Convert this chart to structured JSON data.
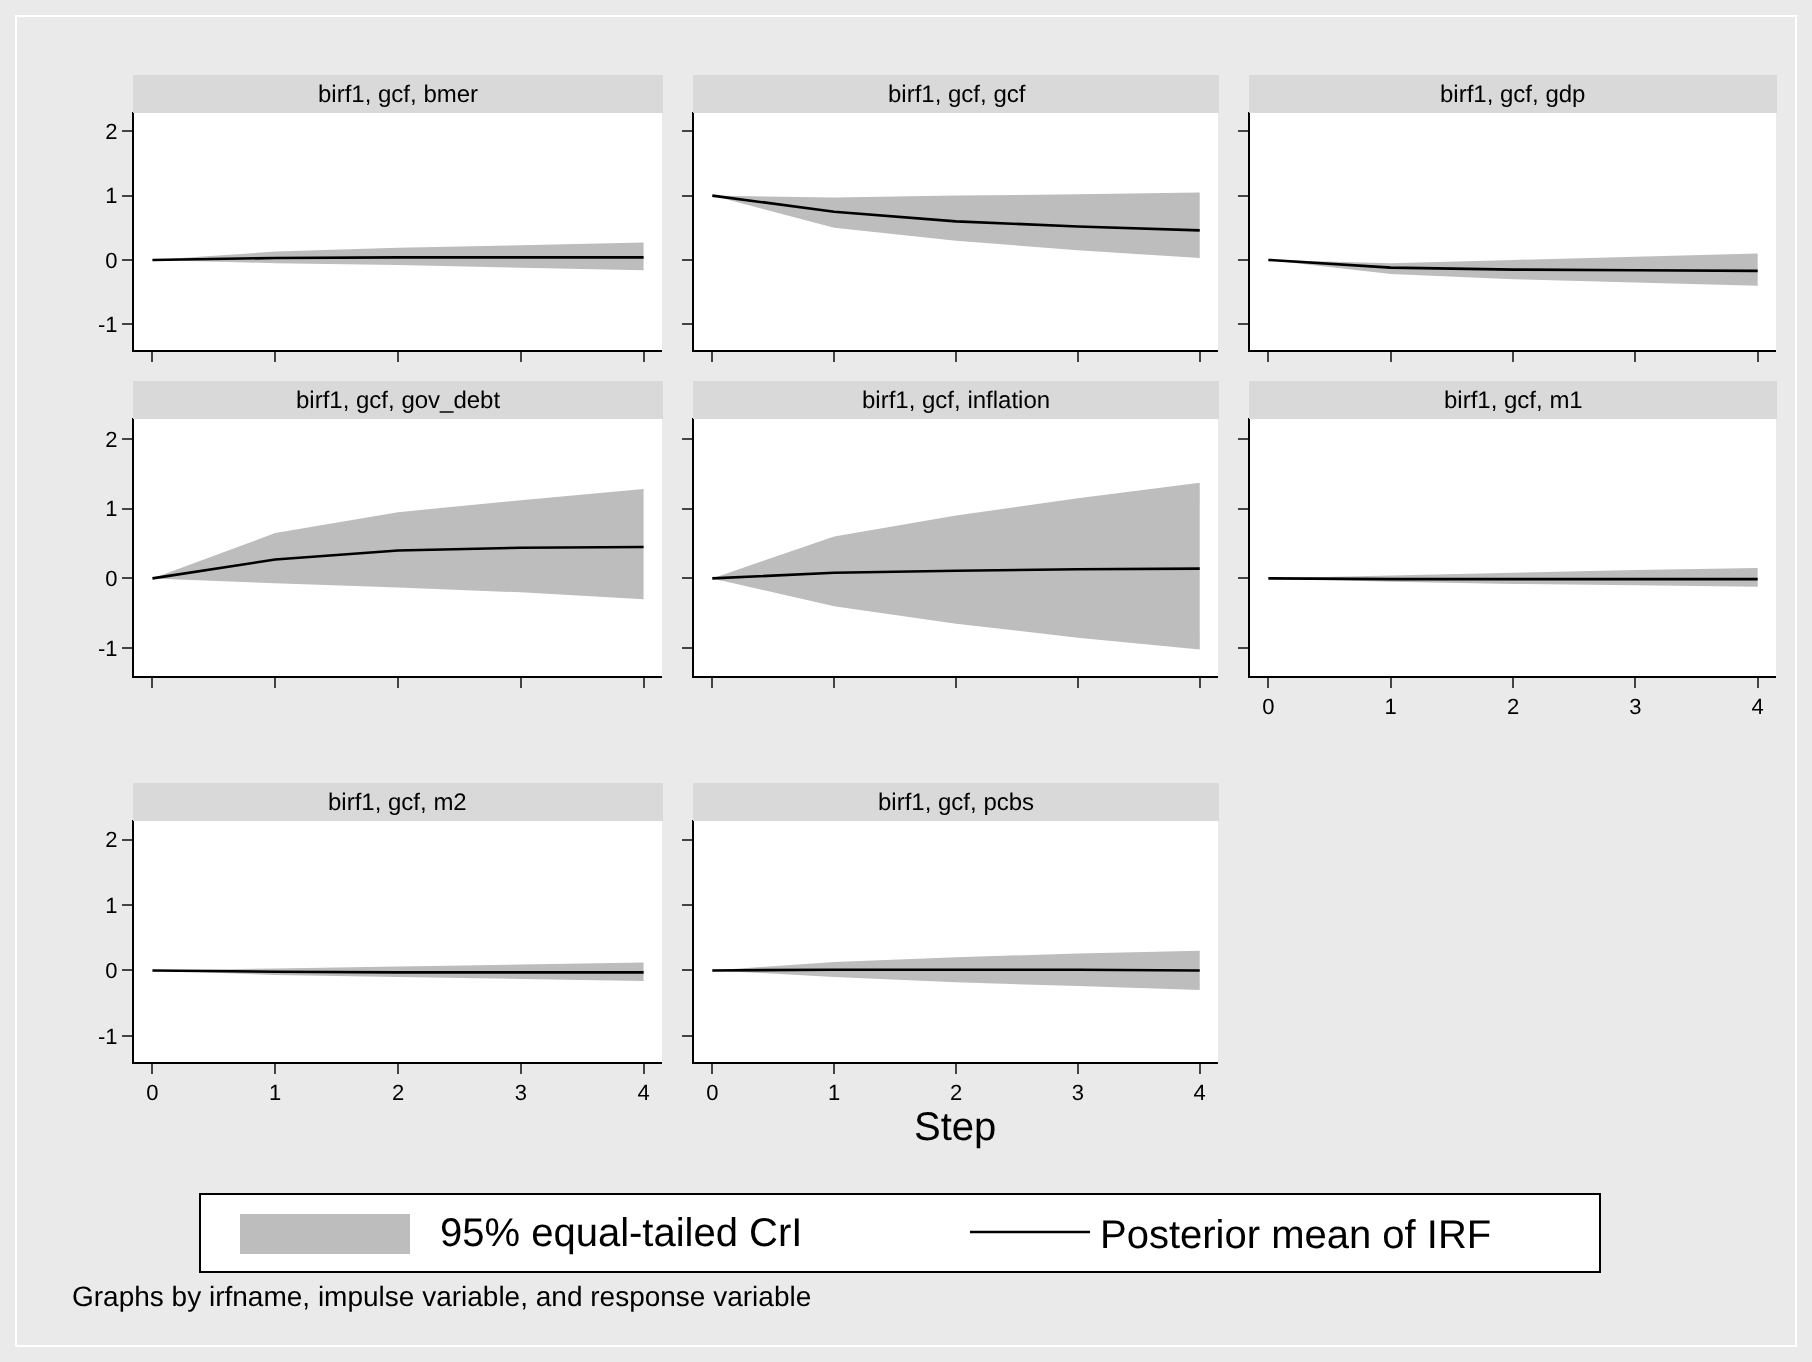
{
  "chart_data": [
    {
      "type": "line",
      "title": "birf1, gcf, bmer",
      "x": [
        0,
        1,
        2,
        3,
        4
      ],
      "xlim": [
        -0.15,
        4.15
      ],
      "xticks": [
        0,
        1,
        2,
        3,
        4
      ],
      "ylim": [
        -1.4,
        2.3
      ],
      "yticks": [
        -1,
        0,
        1,
        2
      ],
      "tick_labels": "y",
      "series": [
        {
          "color": "#000000",
          "values": [
            0,
            0.03,
            0.04,
            0.04,
            0.04
          ],
          "lower": [
            0,
            -0.05,
            -0.08,
            -0.12,
            -0.16
          ],
          "upper": [
            0,
            0.13,
            0.19,
            0.23,
            0.27
          ]
        }
      ]
    },
    {
      "type": "line",
      "title": "birf1, gcf, gcf",
      "x": [
        0,
        1,
        2,
        3,
        4
      ],
      "xlim": [
        -0.15,
        4.15
      ],
      "xticks": [
        0,
        1,
        2,
        3,
        4
      ],
      "ylim": [
        -1.4,
        2.3
      ],
      "yticks": [
        -1,
        0,
        1,
        2
      ],
      "tick_labels": false,
      "series": [
        {
          "color": "#000000",
          "values": [
            1,
            0.75,
            0.6,
            0.52,
            0.46
          ],
          "lower": [
            1,
            0.5,
            0.3,
            0.15,
            0.03
          ],
          "upper": [
            1,
            0.97,
            1,
            1.02,
            1.05
          ]
        }
      ]
    },
    {
      "type": "line",
      "title": "birf1, gcf, gdp",
      "x": [
        0,
        1,
        2,
        3,
        4
      ],
      "xlim": [
        -0.15,
        4.15
      ],
      "xticks": [
        0,
        1,
        2,
        3,
        4
      ],
      "ylim": [
        -1.4,
        2.3
      ],
      "yticks": [
        -1,
        0,
        1,
        2
      ],
      "tick_labels": false,
      "series": [
        {
          "color": "#000000",
          "values": [
            0,
            -0.12,
            -0.15,
            -0.16,
            -0.17
          ],
          "lower": [
            0,
            -0.22,
            -0.3,
            -0.35,
            -0.4
          ],
          "upper": [
            0,
            -0.05,
            0,
            0.05,
            0.1
          ]
        }
      ]
    },
    {
      "type": "line",
      "title": "birf1, gcf, gov_debt",
      "x": [
        0,
        1,
        2,
        3,
        4
      ],
      "xlim": [
        -0.15,
        4.15
      ],
      "xticks": [
        0,
        1,
        2,
        3,
        4
      ],
      "ylim": [
        -1.4,
        2.3
      ],
      "yticks": [
        -1,
        0,
        1,
        2
      ],
      "tick_labels": "y",
      "series": [
        {
          "color": "#000000",
          "values": [
            0,
            0.27,
            0.4,
            0.44,
            0.45
          ],
          "lower": [
            0,
            -0.07,
            -0.13,
            -0.2,
            -0.3
          ],
          "upper": [
            0,
            0.65,
            0.95,
            1.12,
            1.28
          ]
        }
      ]
    },
    {
      "type": "line",
      "title": "birf1, gcf, inflation",
      "x": [
        0,
        1,
        2,
        3,
        4
      ],
      "xlim": [
        -0.15,
        4.15
      ],
      "xticks": [
        0,
        1,
        2,
        3,
        4
      ],
      "ylim": [
        -1.4,
        2.3
      ],
      "yticks": [
        -1,
        0,
        1,
        2
      ],
      "tick_labels": false,
      "series": [
        {
          "color": "#000000",
          "values": [
            0,
            0.08,
            0.11,
            0.13,
            0.14
          ],
          "lower": [
            0,
            -0.4,
            -0.65,
            -0.85,
            -1.02
          ],
          "upper": [
            0,
            0.6,
            0.9,
            1.15,
            1.37
          ]
        }
      ]
    },
    {
      "type": "line",
      "title": "birf1, gcf, m1",
      "x": [
        0,
        1,
        2,
        3,
        4
      ],
      "xlim": [
        -0.15,
        4.15
      ],
      "xticks": [
        0,
        1,
        2,
        3,
        4
      ],
      "ylim": [
        -1.4,
        2.3
      ],
      "yticks": [
        -1,
        0,
        1,
        2
      ],
      "tick_labels": "x",
      "series": [
        {
          "color": "#000000",
          "values": [
            0,
            -0.01,
            -0.01,
            -0.01,
            -0.01
          ],
          "lower": [
            0,
            -0.05,
            -0.08,
            -0.1,
            -0.12
          ],
          "upper": [
            0,
            0.04,
            0.08,
            0.12,
            0.15
          ]
        }
      ]
    },
    {
      "type": "line",
      "title": "birf1, gcf, m2",
      "x": [
        0,
        1,
        2,
        3,
        4
      ],
      "xlim": [
        -0.15,
        4.15
      ],
      "xticks": [
        0,
        1,
        2,
        3,
        4
      ],
      "ylim": [
        -1.4,
        2.3
      ],
      "yticks": [
        -1,
        0,
        1,
        2
      ],
      "series": [
        {
          "color": "#000000",
          "values": [
            0,
            -0.02,
            -0.03,
            -0.03,
            -0.03
          ],
          "lower": [
            0,
            -0.07,
            -0.1,
            -0.13,
            -0.16
          ],
          "upper": [
            0,
            0.03,
            0.06,
            0.09,
            0.12
          ]
        }
      ]
    },
    {
      "type": "line",
      "title": "birf1, gcf, pcbs",
      "x": [
        0,
        1,
        2,
        3,
        4
      ],
      "xlim": [
        -0.15,
        4.15
      ],
      "xticks": [
        0,
        1,
        2,
        3,
        4
      ],
      "ylim": [
        -1.4,
        2.3
      ],
      "yticks": [
        -1,
        0,
        1,
        2
      ],
      "tick_labels": "x",
      "xlabel": "Step",
      "legend": "bottom",
      "annotations": [
        "95% equal-tailed CrI",
        "Graphs by irfname, impulse variable, and response variable"
      ],
      "series": [
        {
          "name": "Posterior mean of IRF",
          "color": "#000000",
          "values": [
            0,
            0.01,
            0.01,
            0.01,
            0
          ],
          "lower": [
            0,
            -0.1,
            -0.18,
            -0.24,
            -0.3
          ],
          "upper": [
            0,
            0.13,
            0.2,
            0.26,
            0.3
          ]
        }
      ]
    }
  ]
}
